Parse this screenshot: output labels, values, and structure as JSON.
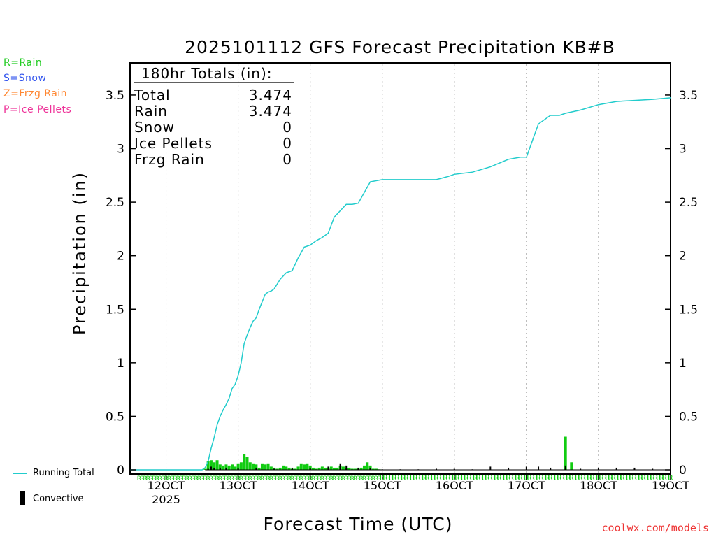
{
  "legend_types": [
    {
      "label": "R=Rain",
      "color": "#22cc22"
    },
    {
      "label": "S=Snow",
      "color": "#3355ee"
    },
    {
      "label": "Z=Frzg Rain",
      "color": "#ff8833"
    },
    {
      "label": "P=Ice Pellets",
      "color": "#ee3399"
    }
  ],
  "legend_bottom": {
    "running_total": "Running Total",
    "convective": "Convective"
  },
  "credit": "coolwx.com/models",
  "totals": {
    "header": "180hr Totals (in):",
    "rows": [
      {
        "label": "Total",
        "value": "3.474"
      },
      {
        "label": "Rain",
        "value": "3.474"
      },
      {
        "label": "Snow",
        "value": "0"
      },
      {
        "label": "Ice Pellets",
        "value": "0"
      },
      {
        "label": "Frzg Rain",
        "value": "0"
      }
    ]
  },
  "colors": {
    "running": "#22cccc",
    "rain": "#11cc11",
    "convective": "#000000",
    "grid": "#999999"
  },
  "chart_data": {
    "type": "bar",
    "title": "2025101112 GFS Forecast Precipitation KB#B",
    "xlabel": "Forecast Time (UTC)",
    "ylabel": "Precipitation (in)",
    "ylim": [
      0,
      3.8
    ],
    "yticks": [
      0,
      0.5,
      1,
      1.5,
      2,
      2.5,
      3,
      3.5
    ],
    "ytick_labels": [
      "0",
      "0.5",
      "1",
      "1.5",
      "2",
      "2.5",
      "3",
      "3.5"
    ],
    "xlim_hours": [
      0,
      180
    ],
    "xticks": [
      {
        "hour": 12,
        "label": "12OCT",
        "sub": "2025"
      },
      {
        "hour": 36,
        "label": "13OCT"
      },
      {
        "hour": 60,
        "label": "14OCT"
      },
      {
        "hour": 84,
        "label": "15OCT"
      },
      {
        "hour": 108,
        "label": "16OCT"
      },
      {
        "hour": 132,
        "label": "17OCT"
      },
      {
        "hour": 156,
        "label": "18OCT"
      },
      {
        "hour": 180,
        "label": "19OCT"
      }
    ],
    "precip_type_char": "R",
    "series": [
      {
        "name": "Running Total",
        "x": [
          0,
          24,
          25,
          26,
          27,
          28,
          29,
          30,
          31,
          32,
          33,
          34,
          35,
          36,
          37,
          38,
          39,
          40,
          41,
          42,
          43,
          44,
          45,
          46,
          47,
          48,
          50,
          52,
          54,
          56,
          58,
          60,
          62,
          64,
          66,
          68,
          70,
          72,
          73,
          74,
          76,
          80,
          84,
          88,
          89,
          90,
          91,
          92,
          96,
          102,
          106,
          108,
          114,
          120,
          126,
          130,
          132,
          136,
          140,
          143,
          144,
          145,
          150,
          156,
          162,
          168,
          174,
          180
        ],
        "y": [
          0,
          0,
          0.02,
          0.08,
          0.2,
          0.3,
          0.42,
          0.5,
          0.56,
          0.61,
          0.67,
          0.76,
          0.8,
          0.88,
          1.0,
          1.18,
          1.26,
          1.33,
          1.39,
          1.42,
          1.5,
          1.57,
          1.64,
          1.66,
          1.67,
          1.69,
          1.78,
          1.84,
          1.86,
          1.98,
          2.08,
          2.1,
          2.14,
          2.17,
          2.21,
          2.36,
          2.42,
          2.48,
          2.48,
          2.48,
          2.49,
          2.69,
          2.71,
          2.71,
          2.71,
          2.71,
          2.71,
          2.71,
          2.71,
          2.71,
          2.74,
          2.76,
          2.78,
          2.83,
          2.9,
          2.92,
          2.92,
          3.23,
          3.31,
          3.31,
          3.32,
          3.33,
          3.36,
          3.41,
          3.44,
          3.45,
          3.46,
          3.474
        ]
      },
      {
        "name": "Rain",
        "x": [
          25,
          26,
          27,
          28,
          29,
          30,
          31,
          32,
          33,
          34,
          35,
          36,
          37,
          38,
          39,
          40,
          41,
          42,
          43,
          44,
          45,
          46,
          47,
          48,
          49,
          50,
          51,
          52,
          53,
          54,
          55,
          56,
          57,
          58,
          59,
          60,
          61,
          62,
          63,
          64,
          65,
          66,
          67,
          68,
          69,
          70,
          71,
          72,
          73,
          74,
          75,
          76,
          77,
          78,
          79,
          80,
          81,
          82,
          83,
          145,
          147
        ],
        "y": [
          0.01,
          0.08,
          0.09,
          0.07,
          0.09,
          0.05,
          0.04,
          0.05,
          0.04,
          0.05,
          0.03,
          0.06,
          0.07,
          0.15,
          0.12,
          0.07,
          0.06,
          0.05,
          0.02,
          0.06,
          0.05,
          0.06,
          0.03,
          0.02,
          0.01,
          0.02,
          0.04,
          0.03,
          0.02,
          0.01,
          0.01,
          0.03,
          0.06,
          0.05,
          0.06,
          0.04,
          0.02,
          0.01,
          0.02,
          0.03,
          0.02,
          0.02,
          0.03,
          0.02,
          0.02,
          0.04,
          0.03,
          0.02,
          0.02,
          0.01,
          0.01,
          0.01,
          0.02,
          0.04,
          0.07,
          0.04,
          0.01,
          0.01,
          0.005,
          0.31,
          0.07
        ]
      },
      {
        "name": "Convective",
        "x": [
          26,
          27,
          28,
          30,
          32,
          36,
          42,
          48,
          54,
          60,
          66,
          70,
          72,
          76,
          80,
          84,
          90,
          96,
          102,
          108,
          114,
          120,
          126,
          132,
          136,
          140,
          145,
          150,
          156,
          162,
          168,
          174
        ],
        "y": [
          0.01,
          0.03,
          0.02,
          0.02,
          0.02,
          0.02,
          0.02,
          0.01,
          0.02,
          0.02,
          0.03,
          0.06,
          0.04,
          0.02,
          0.02,
          0.005,
          0.005,
          0.005,
          0.01,
          0.01,
          0.005,
          0.03,
          0.02,
          0.03,
          0.03,
          0.02,
          0.04,
          0.01,
          0.02,
          0.02,
          0.02,
          0.01
        ]
      }
    ]
  }
}
